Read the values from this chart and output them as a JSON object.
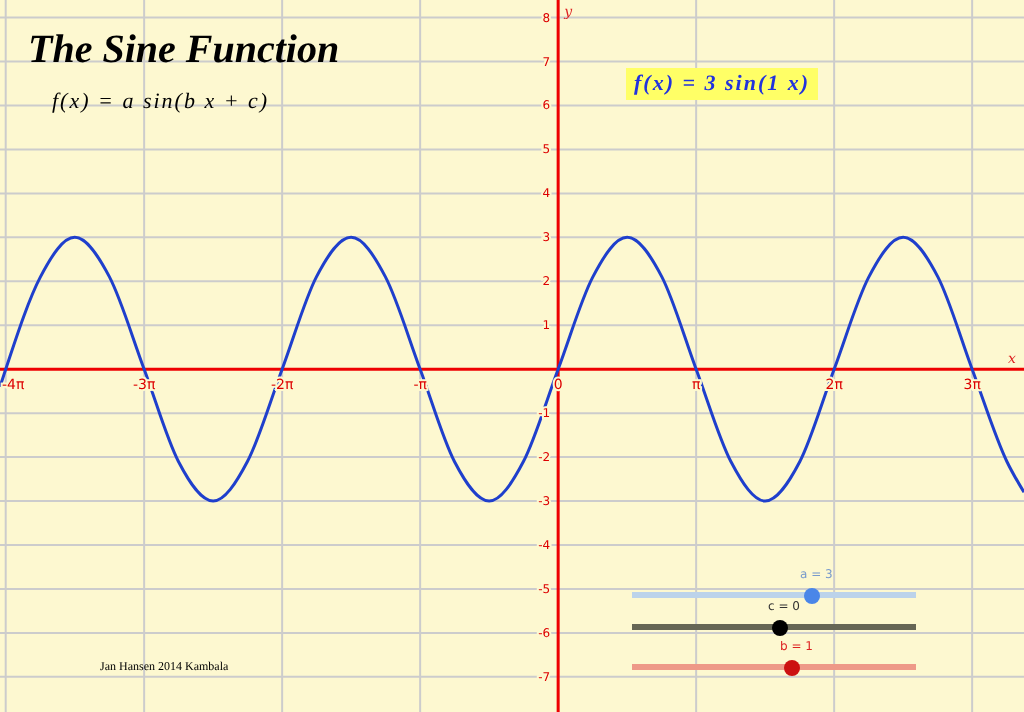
{
  "chart_data": {
    "type": "line",
    "title": "The Sine Function",
    "subtitle": "f(x) = a sin(b x + c)",
    "xlabel": "x",
    "ylabel": "y",
    "annotations": [
      "f(x) = 3 sin(1 x)",
      "a = 3",
      "c = 0",
      "b = 1",
      "Jan Hansen 2014 Kambala"
    ],
    "series": [
      {
        "color": "#1f3fcc",
        "x": [
          -12.7,
          -12.57,
          -11.78,
          -11.0,
          -10.21,
          -9.42,
          -8.64,
          -7.85,
          -7.07,
          -6.28,
          -5.5,
          -4.71,
          -3.93,
          -3.14,
          -2.36,
          -1.57,
          -0.79,
          0,
          0.79,
          1.57,
          2.36,
          3.14,
          3.93,
          4.71,
          5.5,
          6.28,
          7.07,
          7.85,
          8.64,
          9.42,
          10.21,
          10.6
        ],
        "values": [
          -0.4,
          0,
          2.1,
          3,
          2.1,
          0,
          -2.1,
          -3,
          -2.1,
          0,
          2.1,
          3,
          2.1,
          0,
          -2.1,
          -3,
          -2.1,
          0,
          2.1,
          3,
          2.1,
          0,
          -2.1,
          -3,
          -2.1,
          0,
          2.1,
          3,
          2.1,
          0,
          -2.1,
          -2.8
        ]
      }
    ],
    "xlim": [
      -12.7,
      10.6
    ],
    "ylim": [
      -7.8,
      8.4
    ],
    "xticks": [
      {
        "value": -12.57,
        "label": "-4π"
      },
      {
        "value": -9.42,
        "label": "-3π"
      },
      {
        "value": -6.28,
        "label": "-2π"
      },
      {
        "value": -3.14,
        "label": "-π"
      },
      {
        "value": 0,
        "label": "0"
      },
      {
        "value": 3.14,
        "label": "π"
      },
      {
        "value": 6.28,
        "label": "2π"
      },
      {
        "value": 9.42,
        "label": "3π"
      }
    ],
    "yticks": [
      -7,
      -6,
      -5,
      -4,
      -3,
      -2,
      -1,
      1,
      2,
      3,
      4,
      5,
      6,
      7,
      8
    ],
    "grid": true,
    "marker": "none",
    "line_style": "solid"
  }
}
